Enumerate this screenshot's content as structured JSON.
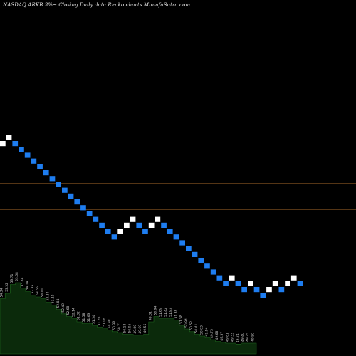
{
  "title": "NASDAQ ARKB 3%~  Closing Daily data  Renko  charts MunafaSutra.com",
  "colors": {
    "background": "#000000",
    "up_brick": "#ffffff",
    "down_brick": "#1e7df0",
    "reference_line": "#a86a2a",
    "volume_fill": "#0b2a0b",
    "volume_edge": "#1f6a1f"
  },
  "chart_data": [
    {
      "type": "renko",
      "title": "NASDAQ ARKB 3%~  Closing Daily data  Renko  charts MunafaSutra.com",
      "brick_size": "3%",
      "bricks": [
        "up",
        "up",
        "down",
        "down",
        "down",
        "down",
        "down",
        "down",
        "down",
        "down",
        "down",
        "down",
        "down",
        "down",
        "down",
        "down",
        "down",
        "down",
        "down",
        "up",
        "up",
        "up",
        "down",
        "down",
        "up",
        "up",
        "down",
        "down",
        "down",
        "down",
        "down",
        "down",
        "down",
        "down",
        "down",
        "down",
        "down",
        "up",
        "down",
        "down",
        "up",
        "down",
        "down",
        "up",
        "up",
        "down",
        "up",
        "up",
        "down"
      ],
      "reference_lines": [
        "support",
        "resistance"
      ],
      "grid": false
    },
    {
      "type": "area",
      "series": "volume",
      "labels": [
        "54.34",
        "53.32",
        "53.71",
        "53.68",
        "53.84",
        "54.14",
        "53.85",
        "53.65",
        "54.01",
        "53.84",
        "53.15",
        "52.84",
        "52.49",
        "52.68",
        "52.14",
        "51.82",
        "51.58",
        "51.63",
        "51.34",
        "51.26",
        "51.06",
        "50.98",
        "50.38",
        "50.71",
        "50.18",
        "50.05",
        "49.80",
        "49.69",
        "49.55",
        "49.81",
        "50.94",
        "51.69",
        "51.42",
        "51.83",
        "51.38",
        "51.58",
        "50.94",
        "50.52",
        "50.41",
        "50.03",
        "49.84",
        "49.75",
        "49.68",
        "49.57",
        "49.81",
        "49.33",
        "49.24",
        "49.40",
        "49.75",
        "49.50"
      ],
      "values": [
        62,
        68,
        78,
        80,
        74,
        70,
        66,
        64,
        62,
        58,
        55,
        50,
        45,
        42,
        40,
        36,
        34,
        34,
        32,
        30,
        29,
        27,
        25,
        24,
        22,
        22,
        21,
        21,
        22,
        36,
        42,
        40,
        40,
        40,
        38,
        32,
        28,
        25,
        22,
        20,
        18,
        16,
        14,
        13,
        12,
        12,
        11,
        12,
        12,
        12
      ],
      "ylim": [
        0,
        100
      ]
    }
  ]
}
